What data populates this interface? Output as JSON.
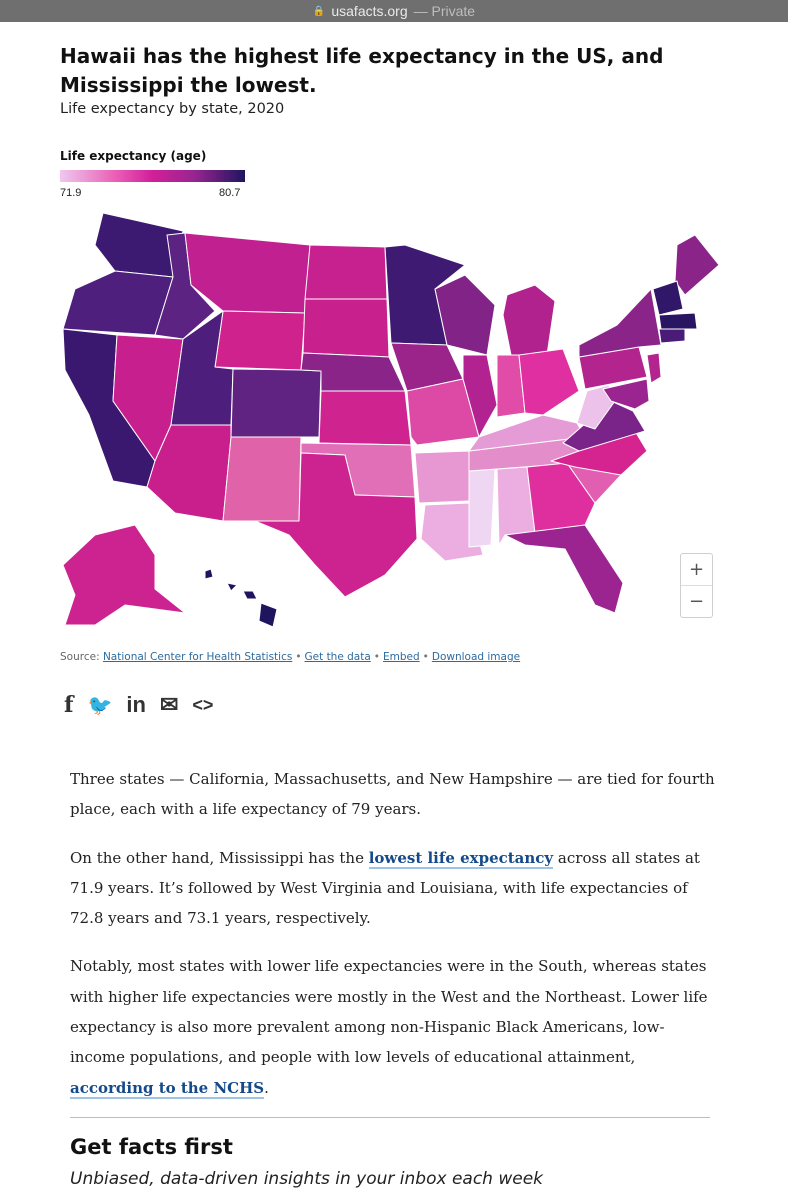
{
  "browser": {
    "url": "usafacts.org",
    "privacy": "— Private"
  },
  "headline": "Hawaii has the highest life expectancy in the US, and Mississippi the lowest.",
  "subtitle": "Life expectancy by state, 2020",
  "legend": {
    "title": "Life expectancy (age)",
    "min": "71.9",
    "max": "80.7"
  },
  "chart_data": {
    "type": "choropleth",
    "metric": "Life expectancy (age)",
    "year": 2020,
    "range": [
      71.9,
      80.7
    ],
    "colors": {
      "low": "#efc8ef",
      "mid": "#d21f9a",
      "high": "#1f1460"
    },
    "states": [
      {
        "name": "Hawaii",
        "value": 80.7
      },
      {
        "name": "California",
        "value": 79.0
      },
      {
        "name": "Massachusetts",
        "value": 79.0
      },
      {
        "name": "New Hampshire",
        "value": 79.0
      },
      {
        "name": "Mississippi",
        "value": 71.9
      },
      {
        "name": "West Virginia",
        "value": 72.8
      },
      {
        "name": "Louisiana",
        "value": 73.1
      }
    ]
  },
  "zoom": {
    "in": "+",
    "out": "−"
  },
  "source": {
    "label": "Source:",
    "link": "National Center for Health Statistics",
    "get_data": "Get the data",
    "embed": "Embed",
    "download": "Download image"
  },
  "share": {
    "facebook": "f",
    "twitter": "🐦",
    "linkedin": "in",
    "email": "✉",
    "embed": "<>"
  },
  "article": {
    "p1": "Three states — California, Massachusetts, and New Hampshire — are tied for fourth place, each with a life expectancy of 79 years.",
    "p2_pre": "On the other hand, Mississippi has the ",
    "p2_link": "lowest life expectancy",
    "p2_post": " across all states at 71.9 years. It’s followed by West Virginia and Louisiana, with life expectancies of 72.8 years and 73.1 years, respectively.",
    "p3": "Notably, most states with lower life expectancies were in the South, whereas states with higher life expectancies were mostly in the West and the Northeast. Lower life expectancy is also more prevalent among non-Hispanic Black Americans, low-income populations, and people with low levels of educational attainment, ",
    "p3_link": "according to the NCHS",
    "p3_end": "."
  },
  "newsletter": {
    "title": "Get facts first",
    "subtitle": "Unbiased, data-driven insights in your inbox each week"
  }
}
